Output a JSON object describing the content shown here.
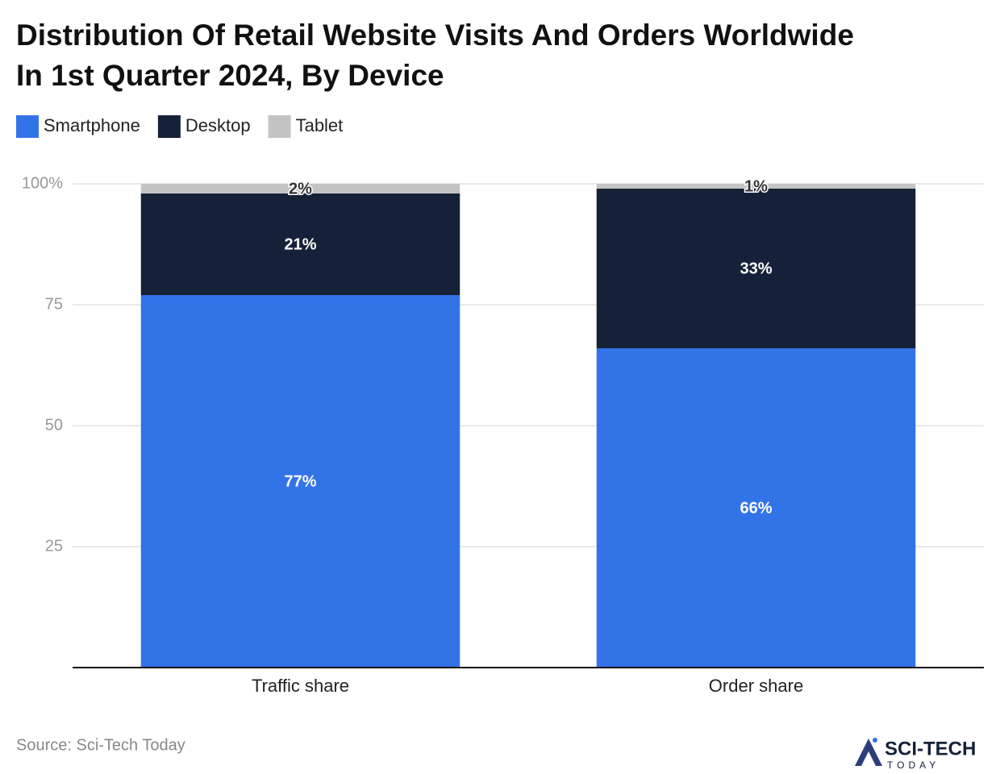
{
  "chart_data": {
    "type": "stacked-bar",
    "title": [
      "Distribution Of Retail Website Visits And Orders Worldwide",
      "In 1st Quarter 2024, By Device"
    ],
    "categories": [
      "Traffic share",
      "Order share"
    ],
    "series": [
      {
        "name": "Smartphone",
        "color": "#3373e8",
        "values": [
          77,
          66
        ],
        "value_labels": [
          "77%",
          "66%"
        ],
        "label_color": "#ffffff"
      },
      {
        "name": "Desktop",
        "color": "#152138",
        "values": [
          21,
          33
        ],
        "value_labels": [
          "21%",
          "33%"
        ],
        "label_color": "#ffffff"
      },
      {
        "name": "Tablet",
        "color": "#c4c4c4",
        "values": [
          2,
          1
        ],
        "value_labels": [
          "2%",
          "1%"
        ],
        "label_color": "#333333"
      }
    ],
    "ylim": [
      0,
      100
    ],
    "yticks": [
      25,
      50,
      75,
      {
        "value": 100,
        "label": "100%"
      }
    ],
    "grid": true,
    "legend": "top-left",
    "source": "Source: Sci-Tech Today",
    "logo": [
      "SCI-TECH",
      "TODAY"
    ]
  }
}
